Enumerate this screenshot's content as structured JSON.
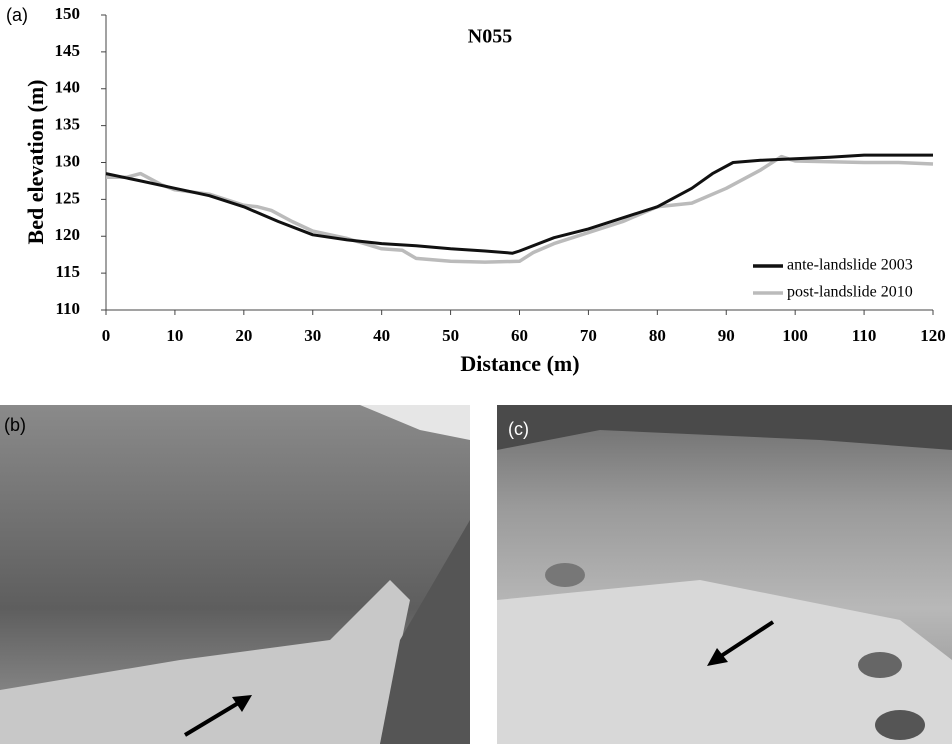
{
  "panel_labels": [
    "(a)",
    "(b)",
    "(c)"
  ],
  "chart_data": {
    "type": "line",
    "title": "N055",
    "x_label": "Distance (m)",
    "y_label": "Bed elevation (m)",
    "xlim": [
      0,
      120
    ],
    "xticks": [
      0,
      10,
      20,
      30,
      40,
      50,
      60,
      70,
      80,
      90,
      100,
      110,
      120
    ],
    "ylim": [
      110,
      150
    ],
    "yticks": [
      110,
      115,
      120,
      125,
      130,
      135,
      140,
      145,
      150
    ],
    "grid": false,
    "legend": "lower right",
    "series": [
      {
        "name": "ante-landslide 2003",
        "color": "#111111",
        "x": [
          0,
          5,
          10,
          15,
          20,
          25,
          30,
          35,
          40,
          45,
          50,
          55,
          59,
          60,
          65,
          70,
          75,
          80,
          85,
          88,
          91,
          95,
          100,
          105,
          110,
          115,
          120
        ],
        "values": [
          128.5,
          127.5,
          126.5,
          125.5,
          124,
          122,
          120.2,
          119.5,
          119,
          118.7,
          118.3,
          118,
          117.7,
          118,
          119.8,
          121,
          122.5,
          124,
          126.5,
          128.5,
          130,
          130.3,
          130.5,
          130.7,
          131,
          131,
          131
        ]
      },
      {
        "name": "post-landslide 2010",
        "color": "#bbbbbb",
        "x": [
          0,
          3,
          5,
          8,
          10,
          15,
          20,
          22,
          24,
          27,
          30,
          35,
          40,
          43,
          45,
          50,
          55,
          60,
          62,
          65,
          70,
          75,
          80,
          85,
          90,
          95,
          98,
          100,
          110,
          115,
          120
        ],
        "values": [
          128,
          128,
          128.5,
          127,
          126.3,
          125.7,
          124.2,
          124,
          123.5,
          122,
          120.7,
          119.7,
          118.3,
          118.1,
          117,
          116.6,
          116.5,
          116.6,
          117.8,
          119,
          120.5,
          122,
          124,
          124.5,
          126.5,
          129,
          130.8,
          130.2,
          130,
          130,
          129.8
        ]
      }
    ]
  }
}
